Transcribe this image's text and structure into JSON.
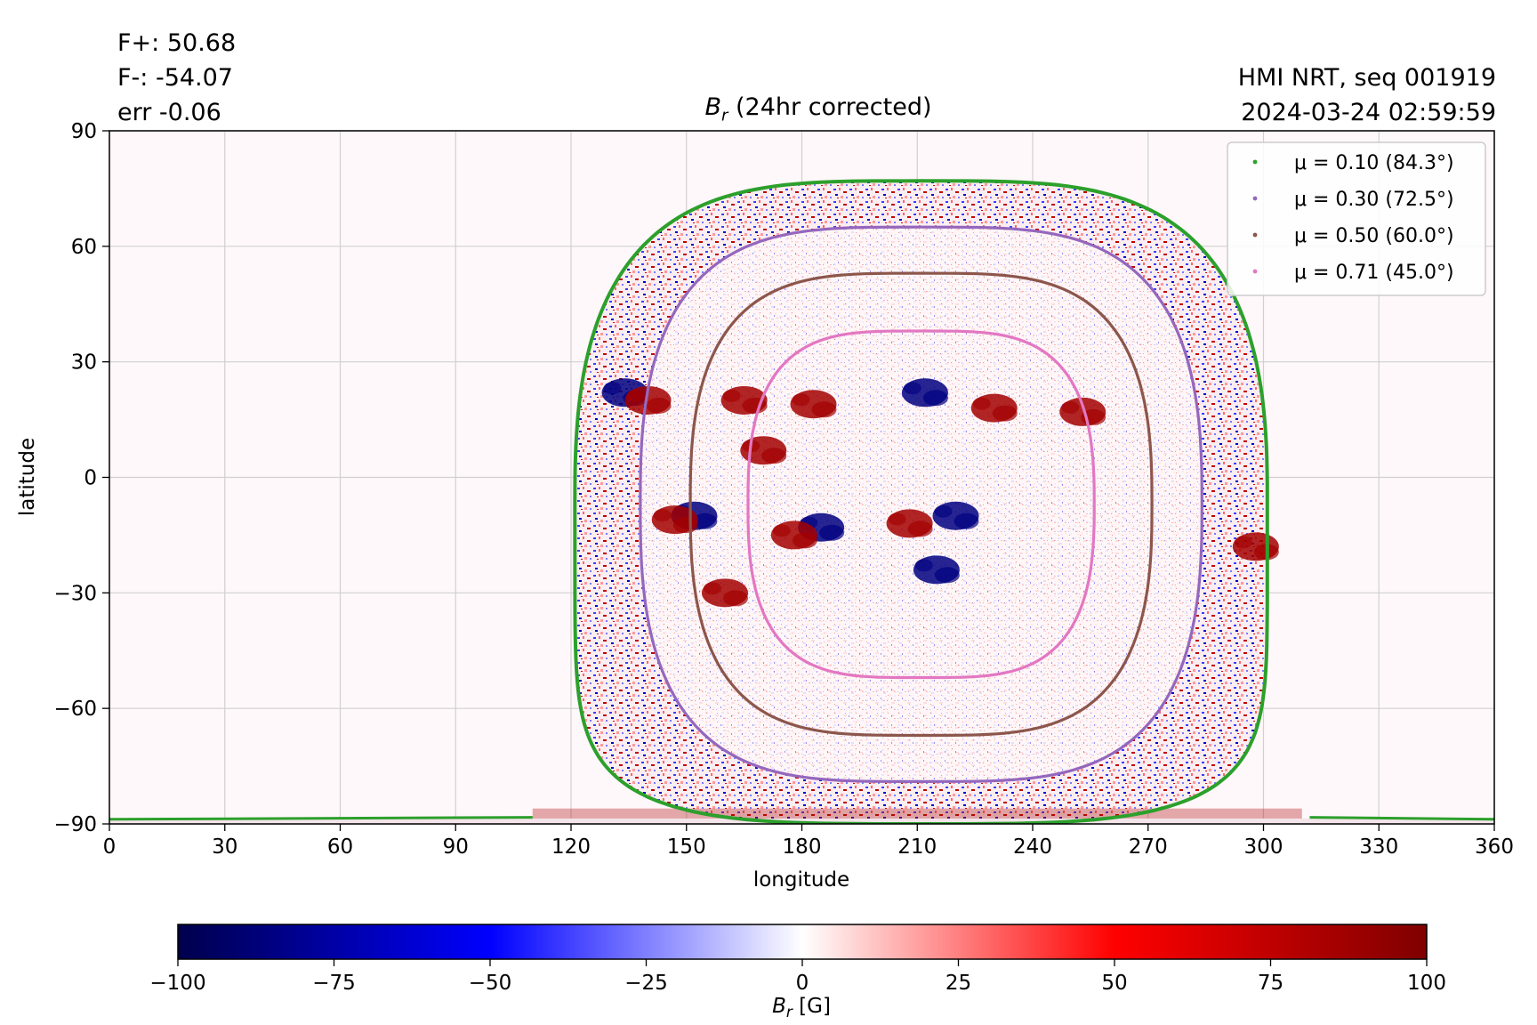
{
  "header": {
    "flux_pos": "F+: 50.68",
    "flux_neg": "F-: -54.07",
    "flux_err": "err -0.06",
    "instrument": "HMI NRT, seq 001919",
    "timestamp": "2024-03-24 02:59:59"
  },
  "chart_data": {
    "type": "heatmap",
    "title_var": "B",
    "title_sub": "r",
    "title_rest": " (24hr corrected)",
    "xlabel": "longitude",
    "ylabel": "latitude",
    "xlim": [
      0,
      360
    ],
    "ylim": [
      -90,
      90
    ],
    "xticks": [
      0,
      30,
      60,
      90,
      120,
      150,
      180,
      210,
      240,
      270,
      300,
      330,
      360
    ],
    "yticks": [
      90,
      60,
      30,
      0,
      -30,
      -60,
      -90
    ],
    "ytick_labels": [
      "90",
      "60",
      "30",
      "0",
      "−30",
      "−60",
      "−90"
    ],
    "grid": true,
    "legend_position": "top-right",
    "disk_center": {
      "lon": 211,
      "lat": -7
    },
    "contours": [
      {
        "label": "μ = 0.10 (84.3°)",
        "mu": 0.1,
        "color": "#2ca02c",
        "half_width_lon": 90,
        "top_lat": 77,
        "bottom_lat": -90
      },
      {
        "label": "μ = 0.30 (72.5°)",
        "mu": 0.3,
        "color": "#9467bd",
        "half_width_lon": 73,
        "top_lat": 65,
        "bottom_lat": -79
      },
      {
        "label": "μ = 0.50 (60.0°)",
        "mu": 0.5,
        "color": "#8c564b",
        "half_width_lon": 60,
        "top_lat": 53,
        "bottom_lat": -67
      },
      {
        "label": "μ = 0.71 (45.0°)",
        "mu": 0.71,
        "color": "#e377c2",
        "half_width_lon": 45,
        "top_lat": 38,
        "bottom_lat": -52
      }
    ],
    "active_regions": [
      {
        "lon": 134,
        "lat": 22,
        "polarity": "negative"
      },
      {
        "lon": 140,
        "lat": 20,
        "polarity": "positive"
      },
      {
        "lon": 165,
        "lat": 20,
        "polarity": "positive"
      },
      {
        "lon": 183,
        "lat": 19,
        "polarity": "positive"
      },
      {
        "lon": 212,
        "lat": 22,
        "polarity": "negative"
      },
      {
        "lon": 230,
        "lat": 18,
        "polarity": "positive"
      },
      {
        "lon": 170,
        "lat": 7,
        "polarity": "positive"
      },
      {
        "lon": 185,
        "lat": -13,
        "polarity": "negative"
      },
      {
        "lon": 178,
        "lat": -15,
        "polarity": "positive"
      },
      {
        "lon": 208,
        "lat": -12,
        "polarity": "positive"
      },
      {
        "lon": 220,
        "lat": -10,
        "polarity": "negative"
      },
      {
        "lon": 152,
        "lat": -10,
        "polarity": "negative"
      },
      {
        "lon": 147,
        "lat": -11,
        "polarity": "positive"
      },
      {
        "lon": 160,
        "lat": -30,
        "polarity": "positive"
      },
      {
        "lon": 215,
        "lat": -24,
        "polarity": "negative"
      },
      {
        "lon": 298,
        "lat": -18,
        "polarity": "positive"
      },
      {
        "lon": 253,
        "lat": 17,
        "polarity": "positive"
      }
    ],
    "colorbar": {
      "label_var": "B",
      "label_sub": "r",
      "label_unit": " [G]",
      "min": -100,
      "max": 100,
      "ticks": [
        -100,
        -75,
        -50,
        -25,
        0,
        25,
        50,
        75,
        100
      ],
      "tick_labels": [
        "−100",
        "−75",
        "−50",
        "−25",
        "0",
        "25",
        "50",
        "75",
        "100"
      ],
      "colors": [
        "#00004c",
        "#0000ff",
        "#ffffff",
        "#ff0000",
        "#7f0000"
      ]
    }
  }
}
